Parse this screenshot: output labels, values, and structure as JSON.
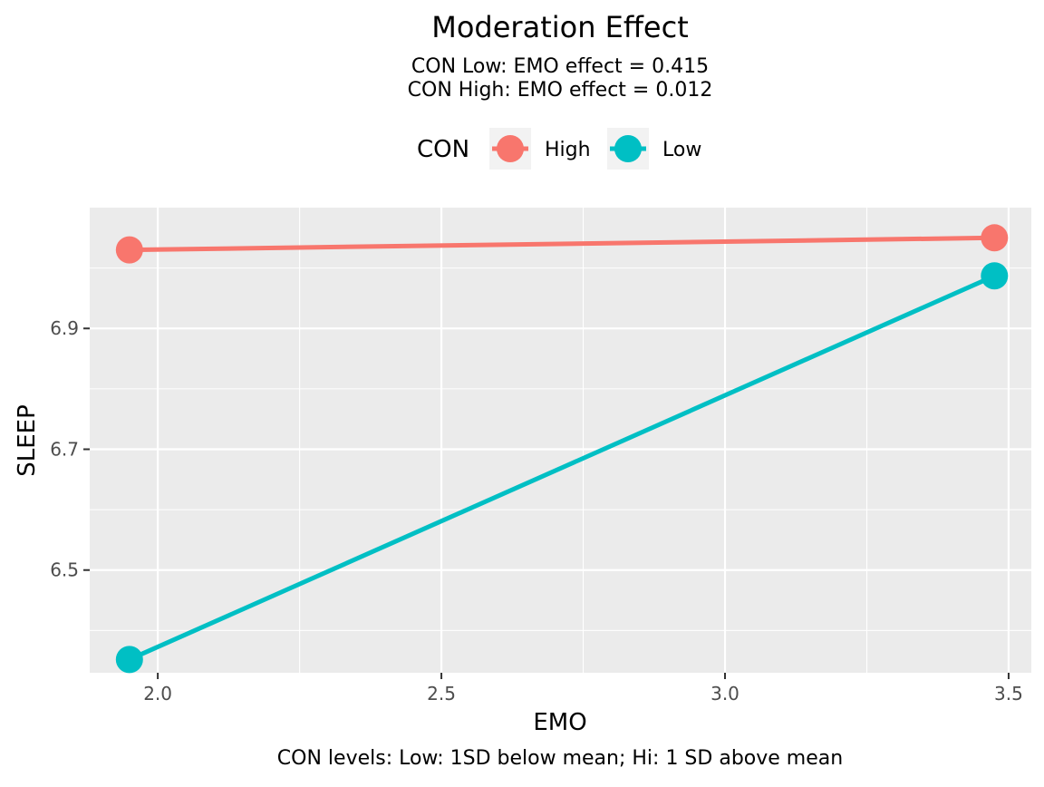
{
  "chart_data": {
    "type": "line",
    "title": "Moderation Effect",
    "subtitle_lines": [
      "CON Low: EMO effect = 0.415",
      "CON High: EMO effect = 0.012"
    ],
    "caption": "CON levels: Low: 1SD below mean; Hi: 1 SD above mean",
    "xlabel": "EMO",
    "ylabel": "SLEEP",
    "xlim": [
      1.88,
      3.54
    ],
    "ylim": [
      6.33,
      7.1
    ],
    "x_ticks": [
      2.0,
      2.5,
      3.0,
      3.5
    ],
    "x_tick_labels": [
      "2.0",
      "2.5",
      "3.0",
      "3.5"
    ],
    "x_minor_ticks": [
      2.25,
      2.75,
      3.25
    ],
    "y_ticks": [
      6.5,
      6.7,
      6.9
    ],
    "y_tick_labels": [
      "6.5",
      "6.7",
      "6.9"
    ],
    "y_minor_ticks": [
      6.4,
      6.6,
      6.8,
      7.0
    ],
    "grid": true,
    "legend_title": "CON",
    "legend_position": "top",
    "series": [
      {
        "name": "High",
        "color": "#F8766D",
        "x": [
          1.95,
          3.475
        ],
        "y": [
          7.03,
          7.05
        ]
      },
      {
        "name": "Low",
        "color": "#00BFC4",
        "x": [
          1.95,
          3.475
        ],
        "y": [
          6.352,
          6.987
        ]
      }
    ],
    "panel_background": "#EBEBEB",
    "grid_color": "#FFFFFF"
  }
}
